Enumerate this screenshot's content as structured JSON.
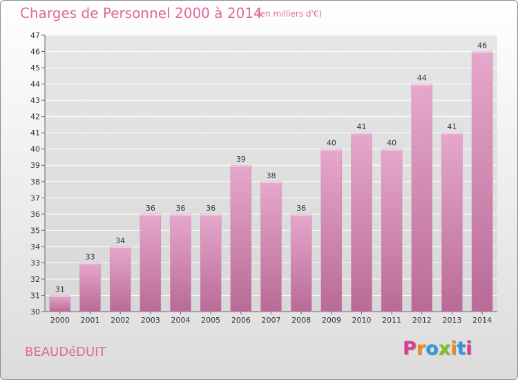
{
  "header": {
    "title": "Charges de Personnel 2000 à 2014",
    "subtitle": "(en milliers d'€)"
  },
  "footer": {
    "commune": "BEAUDéDUIT",
    "brand_letters": [
      "P",
      "r",
      "o",
      "x",
      "i",
      "t",
      "i"
    ],
    "brand_colors": [
      "#e23a92",
      "#f08b1d",
      "#2b9be0",
      "#7bbf2a",
      "#f08b1d",
      "#2b9be0",
      "#e23a92"
    ]
  },
  "colors": {
    "bar_top": "#e6a8cc",
    "bar_bottom": "#b96a97",
    "bar_edge": "#c88aae",
    "grid": "#ffffff",
    "axis_text": "#333333"
  },
  "chart_data": {
    "type": "bar",
    "title": "Charges de Personnel 2000 à 2014",
    "subtitle": "(en milliers d'€)",
    "categories": [
      "2000",
      "2001",
      "2002",
      "2003",
      "2004",
      "2005",
      "2006",
      "2007",
      "2008",
      "2009",
      "2010",
      "2011",
      "2012",
      "2013",
      "2014"
    ],
    "values": [
      31,
      33,
      34,
      36,
      36,
      36,
      39,
      38,
      36,
      40,
      41,
      40,
      44,
      41,
      46
    ],
    "ylim": [
      30,
      47
    ],
    "yticks": [
      30,
      31,
      32,
      33,
      34,
      35,
      36,
      37,
      38,
      39,
      40,
      41,
      42,
      43,
      44,
      45,
      46,
      47
    ],
    "grid": true,
    "data_labels": true
  }
}
